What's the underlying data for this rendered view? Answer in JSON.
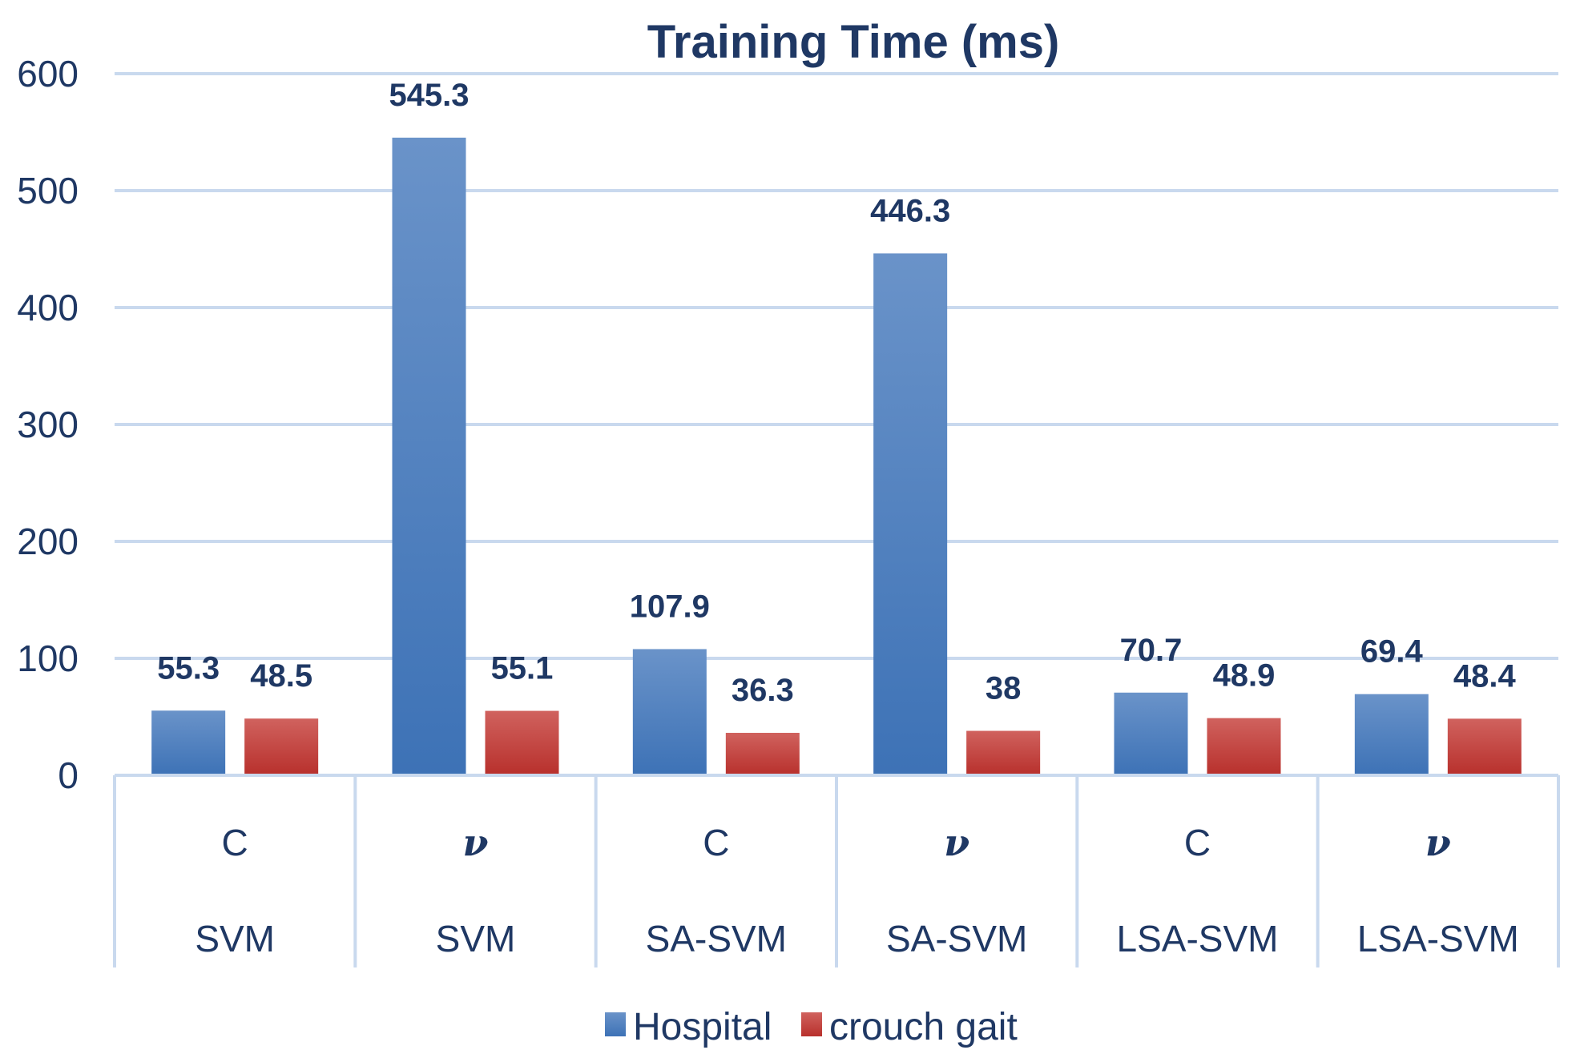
{
  "chart_data": {
    "type": "bar",
    "title": "Training Time (ms)",
    "xlabel": "",
    "ylabel": "",
    "ylim": [
      0,
      600
    ],
    "yticks": [
      0,
      100,
      200,
      300,
      400,
      500,
      600
    ],
    "categories": [
      {
        "param": "C",
        "method": "SVM"
      },
      {
        "param": "ν",
        "method": "SVM"
      },
      {
        "param": "C",
        "method": "SA-SVM"
      },
      {
        "param": "ν",
        "method": "SA-SVM"
      },
      {
        "param": "C",
        "method": "LSA-SVM"
      },
      {
        "param": "ν",
        "method": "LSA-SVM"
      }
    ],
    "series": [
      {
        "name": "Hospital",
        "values": [
          55.3,
          545.3,
          107.9,
          446.3,
          70.7,
          69.4
        ],
        "color": "#4a7ebb"
      },
      {
        "name": "crouch gait",
        "values": [
          48.5,
          55.1,
          36.3,
          38,
          48.9,
          48.4
        ],
        "color": "#c0403c"
      }
    ],
    "grid": true,
    "legend": "bottom"
  }
}
